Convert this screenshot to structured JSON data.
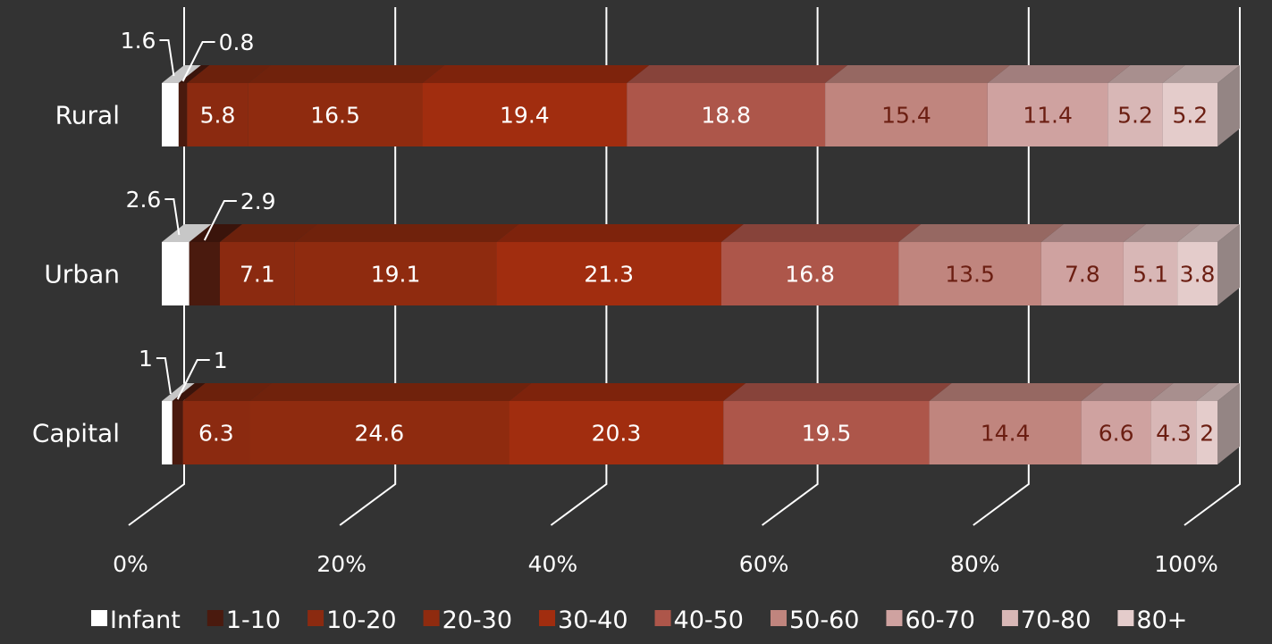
{
  "chart_data": {
    "type": "bar",
    "orientation": "horizontal",
    "stacked": "100%",
    "style": "3d",
    "categories": [
      "Rural",
      "Urban",
      "Capital"
    ],
    "series": [
      {
        "name": "Infant",
        "values": [
          1.6,
          2.6,
          1
        ],
        "color": "#ffffff",
        "label_color": "#ffffff"
      },
      {
        "name": "1-10",
        "values": [
          0.8,
          2.9,
          1
        ],
        "color": "#4a1a0e",
        "label_color": "#ffffff"
      },
      {
        "name": "10-20",
        "values": [
          5.8,
          7.1,
          6.3
        ],
        "color": "#8b2a10",
        "label_color": "#ffffff"
      },
      {
        "name": "20-30",
        "values": [
          16.5,
          19.1,
          24.6
        ],
        "color": "#8f2b0f",
        "label_color": "#ffffff"
      },
      {
        "name": "30-40",
        "values": [
          19.4,
          21.3,
          20.3
        ],
        "color": "#a12d0f",
        "label_color": "#ffffff"
      },
      {
        "name": "40-50",
        "values": [
          18.8,
          16.8,
          19.5
        ],
        "color": "#ad564a",
        "label_color": "#ffffff"
      },
      {
        "name": "50-60",
        "values": [
          15.4,
          13.5,
          14.4
        ],
        "color": "#c0857e",
        "label_color": "#6b1e12"
      },
      {
        "name": "60-70",
        "values": [
          11.4,
          7.8,
          6.6
        ],
        "color": "#cfa2a0",
        "label_color": "#6b1e12"
      },
      {
        "name": "70-80",
        "values": [
          5.2,
          5.1,
          4.3
        ],
        "color": "#d8b7b6",
        "label_color": "#6b1e12"
      },
      {
        "name": "80+",
        "values": [
          5.2,
          3.8,
          2
        ],
        "color": "#e4cccb",
        "label_color": "#6b1e12"
      }
    ],
    "xaxis": {
      "ticks": [
        "0%",
        "20%",
        "40%",
        "60%",
        "80%",
        "100%"
      ],
      "range": [
        0,
        100
      ]
    },
    "grid": true,
    "legend_position": "bottom",
    "callout_series": [
      "Infant",
      "1-10"
    ]
  }
}
